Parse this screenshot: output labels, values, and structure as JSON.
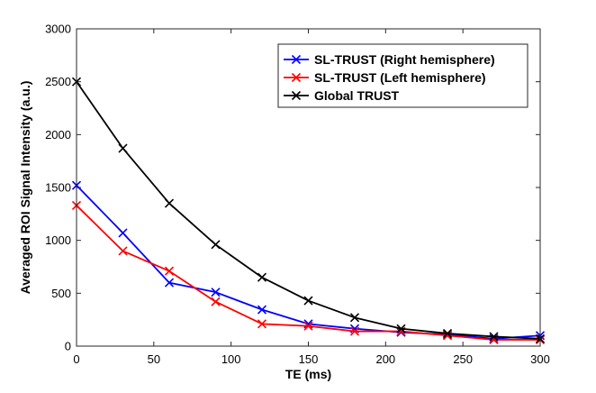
{
  "chart_data": {
    "type": "line",
    "title": "",
    "xlabel": "TE (ms)",
    "ylabel": "Averaged ROI Signal Intensity (a.u.)",
    "xlim": [
      0,
      300
    ],
    "ylim": [
      0,
      3000
    ],
    "xticks": [
      0,
      50,
      100,
      150,
      200,
      250,
      300
    ],
    "yticks": [
      0,
      500,
      1000,
      1500,
      2000,
      2500,
      3000
    ],
    "grid": false,
    "legend_position": "top-right",
    "x": [
      0,
      30,
      60,
      90,
      120,
      150,
      180,
      210,
      240,
      270,
      300
    ],
    "series": [
      {
        "name": "SL-TRUST (Right hemisphere)",
        "color": "#0000ff",
        "marker": "x",
        "values": [
          1520,
          1070,
          600,
          510,
          345,
          210,
          165,
          130,
          110,
          70,
          100
        ]
      },
      {
        "name": "SL-TRUST (Left hemisphere)",
        "color": "#ff0000",
        "marker": "x",
        "values": [
          1330,
          900,
          710,
          420,
          210,
          190,
          140,
          140,
          100,
          60,
          60
        ]
      },
      {
        "name": "Global TRUST",
        "color": "#000000",
        "marker": "x",
        "values": [
          2500,
          1870,
          1350,
          960,
          650,
          430,
          270,
          165,
          120,
          90,
          70
        ]
      }
    ]
  }
}
